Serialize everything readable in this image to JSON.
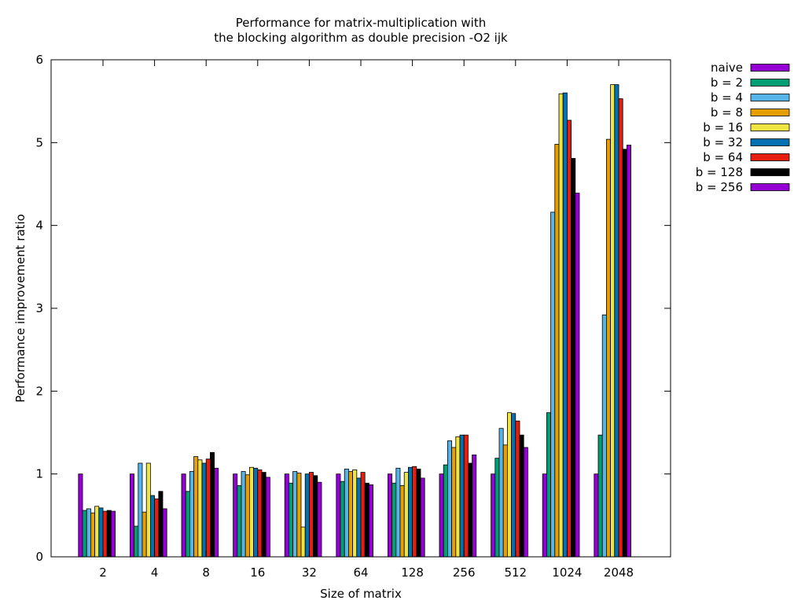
{
  "chart_data": {
    "type": "bar",
    "title": [
      "Performance for matrix-multiplication with",
      "the blocking algorithm as double precision -O2 ijk"
    ],
    "xlabel": "Size of matrix",
    "ylabel": "Performance improvement ratio",
    "ylim": [
      0,
      6
    ],
    "yticks": [
      "0",
      "1",
      "2",
      "3",
      "4",
      "5",
      "6"
    ],
    "legend_placement": "outside-top-right",
    "categories": [
      "2",
      "4",
      "8",
      "16",
      "32",
      "64",
      "128",
      "256",
      "512",
      "1024",
      "2048"
    ],
    "series": [
      {
        "name": "naive",
        "color": "#9400d3",
        "values": [
          1.0,
          1.0,
          1.0,
          1.0,
          1.0,
          1.0,
          1.0,
          1.0,
          1.0,
          1.0,
          1.0
        ]
      },
      {
        "name": "b = 2",
        "color": "#009e73",
        "values": [
          0.56,
          0.37,
          0.79,
          0.86,
          0.89,
          0.91,
          0.89,
          1.11,
          1.19,
          1.74,
          1.47
        ]
      },
      {
        "name": "b = 4",
        "color": "#56b4e9",
        "values": [
          0.58,
          1.13,
          1.03,
          1.03,
          1.03,
          1.06,
          1.07,
          1.4,
          1.55,
          4.16,
          2.92
        ]
      },
      {
        "name": "b = 8",
        "color": "#e69f00",
        "values": [
          0.53,
          0.54,
          1.21,
          0.99,
          1.01,
          1.03,
          0.86,
          1.32,
          1.35,
          4.98,
          5.04
        ]
      },
      {
        "name": "b = 16",
        "color": "#f0e442",
        "values": [
          0.61,
          1.13,
          1.17,
          1.08,
          0.36,
          1.05,
          1.02,
          1.45,
          1.74,
          5.59,
          5.7
        ]
      },
      {
        "name": "b = 32",
        "color": "#0072b2",
        "values": [
          0.59,
          0.74,
          1.13,
          1.07,
          1.0,
          0.95,
          1.08,
          1.47,
          1.73,
          5.6,
          5.7
        ]
      },
      {
        "name": "b = 64",
        "color": "#e51e10",
        "values": [
          0.55,
          0.7,
          1.18,
          1.05,
          1.02,
          1.02,
          1.09,
          1.47,
          1.64,
          5.27,
          5.53
        ]
      },
      {
        "name": "b = 128",
        "color": "#000000",
        "values": [
          0.56,
          0.79,
          1.26,
          1.02,
          0.98,
          0.89,
          1.06,
          1.13,
          1.47,
          4.81,
          4.92
        ]
      },
      {
        "name": "b = 256",
        "color": "#9400d3",
        "values": [
          0.55,
          0.58,
          1.07,
          0.96,
          0.9,
          0.87,
          0.95,
          1.23,
          1.32,
          4.39,
          4.97
        ]
      }
    ]
  }
}
